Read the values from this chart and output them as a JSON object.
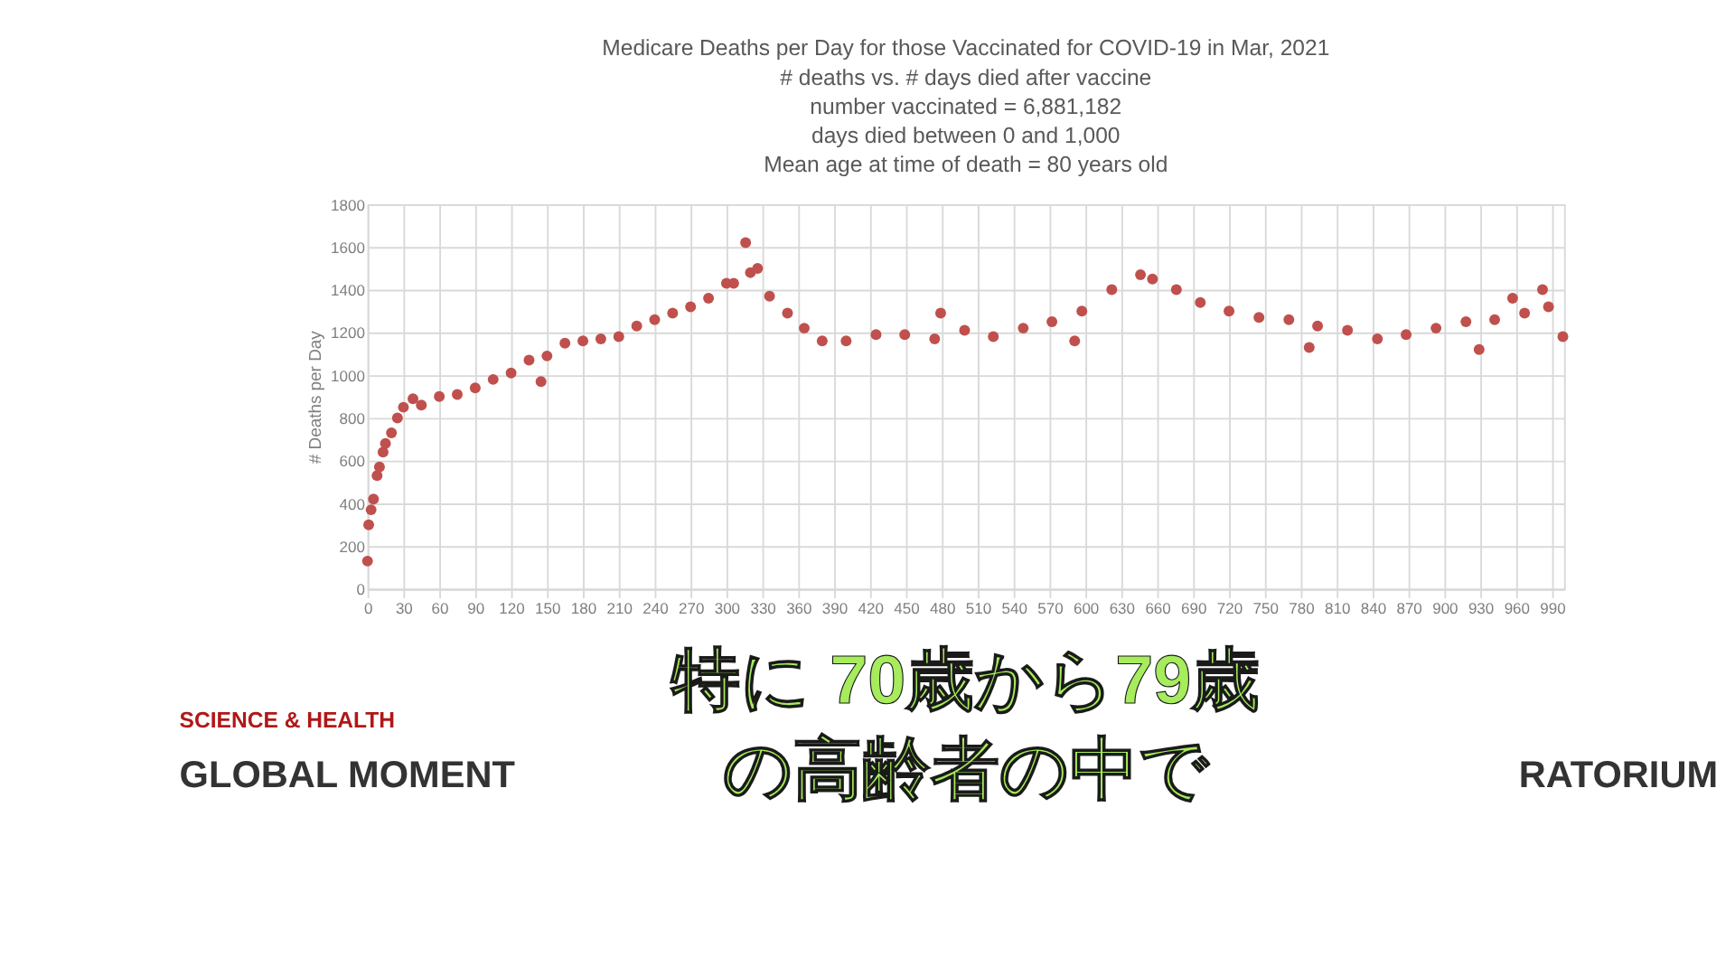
{
  "chart_data": {
    "type": "scatter",
    "title": "Medicare Deaths per Day for those Vaccinated for COVID-19 in Mar, 2021",
    "subtitle": "# deaths vs. # days died after vaccine\nnumber vaccinated = 6,881,182\ndays died between 0 and 1,000\nMean age at time of death = 80 years old",
    "ylabel": "# Deaths per Day",
    "x": [
      0,
      1,
      3,
      5,
      8,
      10,
      13,
      15,
      20,
      25,
      30,
      38,
      45,
      60,
      75,
      90,
      105,
      120,
      135,
      145,
      150,
      165,
      180,
      195,
      210,
      225,
      240,
      255,
      270,
      285,
      300,
      306,
      316,
      320,
      326,
      336,
      351,
      365,
      380,
      400,
      425,
      449,
      474,
      479,
      499,
      523,
      548,
      572,
      591,
      597,
      622,
      646,
      656,
      676,
      696,
      720,
      745,
      770,
      787,
      794,
      819,
      844,
      868,
      893,
      918,
      929,
      942,
      957,
      967,
      982,
      987,
      999
    ],
    "values": [
      130,
      300,
      370,
      420,
      530,
      570,
      640,
      680,
      730,
      800,
      850,
      890,
      860,
      900,
      910,
      940,
      980,
      1010,
      1070,
      970,
      1090,
      1150,
      1160,
      1170,
      1180,
      1230,
      1260,
      1290,
      1320,
      1360,
      1430,
      1430,
      1620,
      1480,
      1500,
      1370,
      1290,
      1220,
      1160,
      1160,
      1190,
      1190,
      1170,
      1290,
      1210,
      1180,
      1220,
      1250,
      1160,
      1300,
      1400,
      1470,
      1450,
      1400,
      1340,
      1300,
      1270,
      1260,
      1130,
      1230,
      1210,
      1170,
      1190,
      1220,
      1250,
      1120,
      1260,
      1360,
      1290,
      1400,
      1320,
      1180
    ],
    "color": "#c0504d",
    "marker": "circle",
    "xlim": [
      0,
      1000
    ],
    "xticks": [
      0,
      30,
      60,
      90,
      120,
      150,
      180,
      210,
      240,
      270,
      300,
      330,
      360,
      390,
      420,
      450,
      480,
      510,
      540,
      570,
      600,
      630,
      660,
      690,
      720,
      750,
      780,
      810,
      840,
      870,
      900,
      930,
      960,
      990
    ],
    "ylim": [
      0,
      1800
    ],
    "yticks": [
      0,
      200,
      400,
      600,
      800,
      1000,
      1200,
      1400,
      1600,
      1800
    ],
    "grid": true,
    "annotations": [
      "特に  70歳から79歳",
      "の高齢者の中で",
      "SCIENCE & HEALTH",
      "GLOBAL MOMENT",
      "RATORIUM"
    ]
  }
}
